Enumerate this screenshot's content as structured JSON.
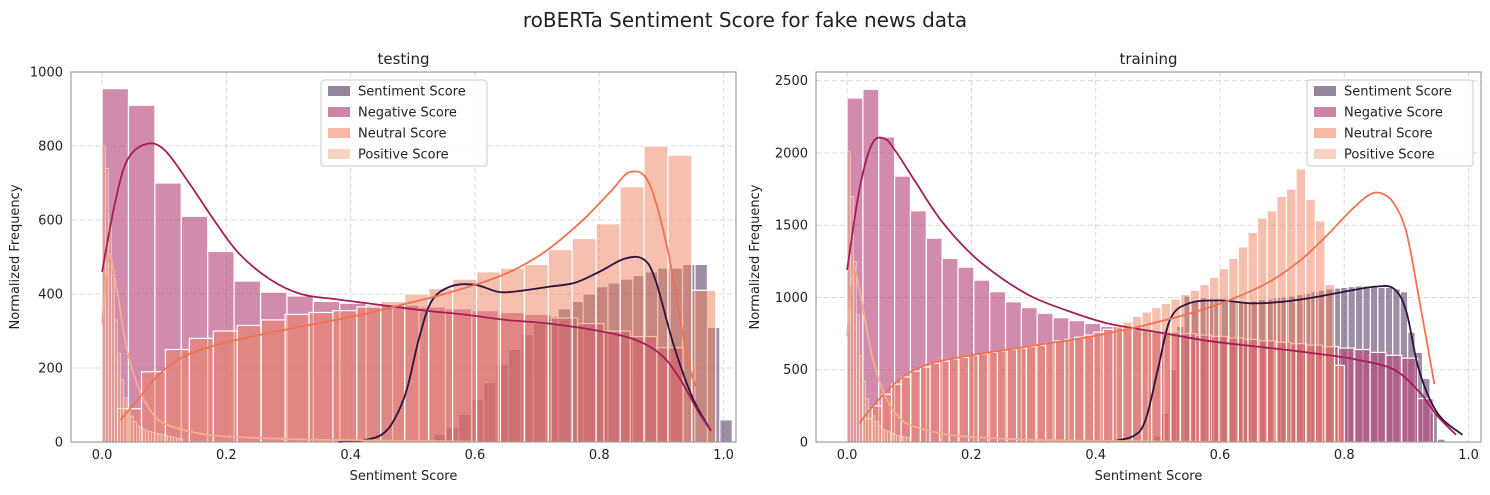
{
  "figure": {
    "title": "roBERTa Sentiment Score for fake news data"
  },
  "colors": {
    "sentiment": "#3a1d4a",
    "negative": "#b5457a",
    "neutral": "#f07f5b",
    "positive": "#f2a781",
    "negative_kde": "#a51f56",
    "neutral_kde": "#ee7350",
    "positive_kde": "#f4ad8a",
    "sentiment_kde": "#2d1340"
  },
  "chart_data": [
    {
      "type": "histogram",
      "title": "testing",
      "xlabel": "Sentiment Score",
      "ylabel": "Normalized Frequency",
      "xlim": [
        -0.05,
        1.02
      ],
      "ylim": [
        0,
        1000
      ],
      "xticks": [
        "0.0",
        "0.2",
        "0.4",
        "0.6",
        "0.8",
        "1.0"
      ],
      "yticks": [
        "0",
        "200",
        "400",
        "600",
        "800",
        "1000"
      ],
      "grid": true,
      "legend": {
        "position": "top-center",
        "entries": [
          "Sentiment Score",
          "Negative Score",
          "Neutral Score",
          "Positive Score"
        ]
      },
      "series": [
        {
          "name": "Sentiment Score",
          "key": "sentiment",
          "bin_start": 0.494,
          "bin_width": 0.02,
          "values": [
            0,
            4,
            20,
            40,
            75,
            115,
            160,
            210,
            250,
            290,
            320,
            340,
            360,
            380,
            400,
            420,
            430,
            440,
            450,
            460,
            470,
            470,
            480,
            480,
            310,
            60
          ],
          "kde_x": [
            0.38,
            0.42,
            0.45,
            0.47,
            0.49,
            0.51,
            0.53,
            0.56,
            0.6,
            0.64,
            0.68,
            0.72,
            0.76,
            0.8,
            0.84,
            0.87,
            0.89,
            0.92,
            0.95,
            0.98
          ],
          "kde_y": [
            0,
            5,
            20,
            60,
            140,
            280,
            380,
            420,
            425,
            405,
            410,
            420,
            430,
            460,
            495,
            495,
            440,
            260,
            120,
            30
          ]
        },
        {
          "name": "Negative Score",
          "key": "negative",
          "bin_start": 0.0,
          "bin_width": 0.0425,
          "values": [
            955,
            910,
            700,
            610,
            515,
            435,
            405,
            395,
            380,
            375,
            370,
            370,
            365,
            360,
            355,
            350,
            345,
            335,
            320,
            300,
            285,
            255
          ],
          "kde_x": [
            0.0,
            0.02,
            0.04,
            0.07,
            0.1,
            0.14,
            0.18,
            0.22,
            0.27,
            0.32,
            0.38,
            0.45,
            0.52,
            0.58,
            0.65,
            0.72,
            0.8,
            0.86,
            0.9,
            0.93,
            0.96,
            0.98
          ],
          "kde_y": [
            460,
            640,
            760,
            805,
            790,
            700,
            600,
            510,
            440,
            400,
            385,
            370,
            355,
            345,
            330,
            320,
            300,
            275,
            235,
            170,
            80,
            30
          ]
        },
        {
          "name": "Neutral Score",
          "key": "neutral",
          "bin_start": 0.025,
          "bin_width": 0.0385,
          "values": [
            90,
            190,
            250,
            280,
            300,
            315,
            330,
            345,
            350,
            355,
            365,
            380,
            400,
            415,
            440,
            460,
            470,
            480,
            520,
            550,
            590,
            690,
            800,
            775,
            410
          ],
          "kde_x": [
            0.03,
            0.06,
            0.09,
            0.13,
            0.18,
            0.24,
            0.3,
            0.36,
            0.42,
            0.48,
            0.54,
            0.6,
            0.65,
            0.7,
            0.74,
            0.78,
            0.82,
            0.85,
            0.88,
            0.91,
            0.94,
            0.955
          ],
          "kde_y": [
            60,
            120,
            180,
            230,
            260,
            285,
            305,
            325,
            345,
            370,
            395,
            425,
            455,
            500,
            550,
            610,
            680,
            730,
            700,
            520,
            240,
            150
          ]
        },
        {
          "name": "Positive Score",
          "key": "positive",
          "bin_start": 0.0,
          "bin_width": 0.005,
          "values": [
            800,
            740,
            600,
            450,
            330,
            240,
            170,
            120,
            90,
            70,
            55,
            45,
            40,
            35,
            30,
            28,
            26,
            24,
            22,
            20,
            18,
            16,
            14,
            12,
            10,
            8
          ],
          "kde_x": [
            0.0,
            0.01,
            0.02,
            0.04,
            0.06,
            0.08,
            0.1,
            0.15,
            0.2,
            0.3,
            0.4,
            0.5,
            0.6
          ],
          "kde_y": [
            320,
            500,
            450,
            250,
            140,
            80,
            50,
            25,
            15,
            8,
            5,
            3,
            1
          ]
        }
      ]
    },
    {
      "type": "histogram",
      "title": "training",
      "xlabel": "Sentiment Score",
      "ylabel": "Normalized Frequency",
      "xlim": [
        -0.05,
        1.02
      ],
      "ylim": [
        0,
        2560
      ],
      "xticks": [
        "0.0",
        "0.2",
        "0.4",
        "0.6",
        "0.8",
        "1.0"
      ],
      "yticks": [
        "0",
        "500",
        "1000",
        "1500",
        "2000",
        "2500"
      ],
      "grid": true,
      "legend": {
        "position": "top-right",
        "entries": [
          "Sentiment Score",
          "Negative Score",
          "Neutral Score",
          "Positive Score"
        ]
      },
      "series": [
        {
          "name": "Sentiment Score",
          "key": "sentiment",
          "bin_start": 0.494,
          "bin_width": 0.012,
          "values": [
            40,
            200,
            500,
            800,
            1010,
            980,
            1000,
            990,
            985,
            980,
            975,
            970,
            965,
            975,
            985,
            990,
            1000,
            1005,
            1010,
            1020,
            1030,
            1040,
            1050,
            1060,
            1065,
            1070,
            1075,
            1080,
            1080,
            1075,
            1070,
            1070,
            1060,
            1040,
            760,
            620,
            440,
            200,
            20
          ],
          "kde_x": [
            0.42,
            0.46,
            0.48,
            0.5,
            0.52,
            0.55,
            0.6,
            0.65,
            0.7,
            0.75,
            0.8,
            0.85,
            0.88,
            0.9,
            0.92,
            0.95,
            0.99
          ],
          "kde_y": [
            0,
            40,
            150,
            500,
            850,
            960,
            980,
            960,
            970,
            1000,
            1040,
            1075,
            1060,
            900,
            500,
            200,
            50
          ]
        },
        {
          "name": "Negative Score",
          "key": "negative",
          "bin_start": 0.0,
          "bin_width": 0.0255,
          "values": [
            2380,
            2440,
            2110,
            1840,
            1600,
            1410,
            1270,
            1210,
            1120,
            1040,
            970,
            930,
            890,
            860,
            840,
            820,
            800,
            790,
            780,
            770,
            760,
            750,
            740,
            730,
            720,
            710,
            700,
            690,
            680,
            670,
            660,
            650,
            640,
            620,
            600,
            580,
            300
          ],
          "kde_x": [
            0.0,
            0.02,
            0.04,
            0.06,
            0.08,
            0.11,
            0.15,
            0.2,
            0.25,
            0.3,
            0.36,
            0.42,
            0.5,
            0.58,
            0.66,
            0.74,
            0.82,
            0.88,
            0.92,
            0.95,
            0.98
          ],
          "kde_y": [
            1190,
            1750,
            2060,
            2100,
            2000,
            1800,
            1540,
            1300,
            1130,
            1000,
            900,
            820,
            760,
            700,
            660,
            620,
            570,
            500,
            350,
            180,
            50
          ]
        },
        {
          "name": "Neutral Score",
          "key": "neutral",
          "bin_start": 0.025,
          "bin_width": 0.0155,
          "values": [
            160,
            250,
            330,
            400,
            450,
            490,
            520,
            545,
            560,
            575,
            585,
            600,
            610,
            620,
            630,
            640,
            650,
            660,
            670,
            685,
            700,
            710,
            725,
            740,
            760,
            780,
            800,
            830,
            870,
            900,
            930,
            960,
            990,
            1020,
            1050,
            1090,
            1140,
            1200,
            1270,
            1350,
            1450,
            1550,
            1600,
            1700,
            1750,
            1890,
            1680,
            1530,
            1090,
            530
          ],
          "kde_x": [
            0.02,
            0.04,
            0.07,
            0.1,
            0.14,
            0.2,
            0.26,
            0.32,
            0.38,
            0.44,
            0.5,
            0.56,
            0.62,
            0.68,
            0.73,
            0.77,
            0.81,
            0.84,
            0.86,
            0.88,
            0.9,
            0.92,
            0.945
          ],
          "kde_y": [
            130,
            240,
            380,
            480,
            550,
            600,
            640,
            680,
            720,
            770,
            830,
            900,
            990,
            1110,
            1260,
            1420,
            1600,
            1710,
            1720,
            1650,
            1450,
            1000,
            400
          ]
        },
        {
          "name": "Positive Score",
          "key": "positive",
          "bin_start": 0.0,
          "bin_width": 0.005,
          "values": [
            2010,
            1700,
            1250,
            880,
            600,
            420,
            300,
            230,
            180,
            140,
            110,
            90,
            80,
            70,
            60,
            50,
            45,
            40,
            35,
            30
          ],
          "kde_x": [
            0.0,
            0.01,
            0.02,
            0.04,
            0.06,
            0.08,
            0.1,
            0.15,
            0.2,
            0.3,
            0.4,
            0.5,
            0.6
          ],
          "kde_y": [
            730,
            1200,
            1050,
            600,
            330,
            190,
            120,
            60,
            35,
            15,
            8,
            4,
            1
          ]
        }
      ]
    }
  ]
}
